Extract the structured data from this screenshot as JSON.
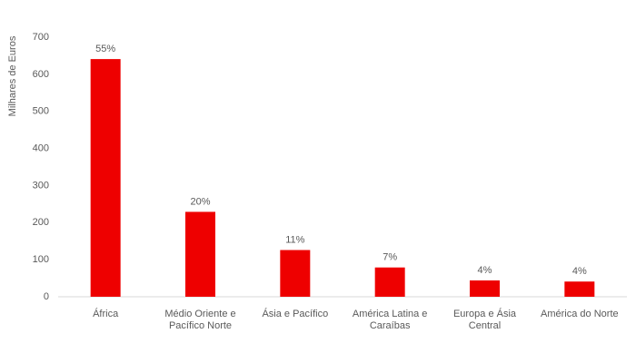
{
  "chart_data": {
    "type": "bar",
    "y_axis_label": "Milhares de Euros",
    "categories": [
      "África",
      "Médio Oriente e Pacífico Norte",
      "Ásia e Pacífico",
      "América Latina e Caraíbas",
      "Europa e Ásia Central",
      "América do Norte"
    ],
    "values": [
      641,
      229,
      126,
      79,
      44,
      41
    ],
    "annotations": [
      "55%",
      "20%",
      "11%",
      "7%",
      "4%",
      "4%"
    ],
    "color": "#ee0000",
    "ylim": [
      0,
      700
    ],
    "yticks": [
      0,
      100,
      200,
      300,
      400,
      500,
      600,
      700
    ],
    "grid": false
  }
}
